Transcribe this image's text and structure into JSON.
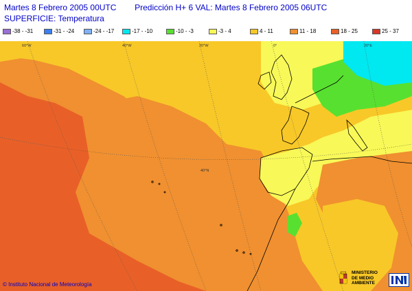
{
  "header": {
    "line1_left": "Martes 8 Febrero 2005 00UTC",
    "line1_right": "Predicción H+  6  VAL: Martes 8 Febrero 2005 06UTC",
    "line2": "SUPERFICIE: Temperatura"
  },
  "legend": [
    {
      "label": "-38 - -31",
      "color": "#9a6fd6"
    },
    {
      "label": "-31 - -24",
      "color": "#3a7ff0"
    },
    {
      "label": "-24 - -17",
      "color": "#7fb0f8"
    },
    {
      "label": "-17 - -10",
      "color": "#00e8f0"
    },
    {
      "label": "-10 - -3",
      "color": "#58e030"
    },
    {
      "label": "-3 - 4",
      "color": "#f8f858"
    },
    {
      "label": "4 - 11",
      "color": "#f8c828"
    },
    {
      "label": "11 - 18",
      "color": "#f09030"
    },
    {
      "label": "18 - 25",
      "color": "#e86028"
    },
    {
      "label": "25 - 37",
      "color": "#d83828"
    }
  ],
  "graticule_labels": {
    "lon_60w": "60°W",
    "lon_40w": "40°W",
    "lon_20w": "20°W",
    "lon_0": "0°",
    "lon_20e": "20°E",
    "lat_40n": "40°N"
  },
  "footer": {
    "copyright": "© Instituto Nacional de Meteorología",
    "ministry": [
      "MINISTERIO",
      "DE MEDIO",
      "AMBIENTE"
    ]
  },
  "colors": {
    "header_text": "#0000c8",
    "coastline": "#000000",
    "graticule": "#555555"
  }
}
